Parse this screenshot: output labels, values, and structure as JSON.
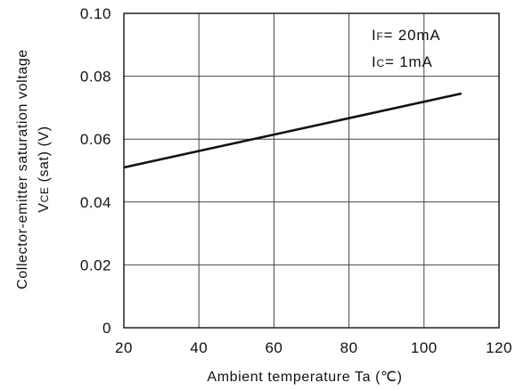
{
  "chart_data": {
    "type": "line",
    "xlabel": "Ambient temperature Ta (℃)",
    "ylabel_line1": "Collector-emitter saturation voltage",
    "ylabel_line2": {
      "prefix": "V",
      "subscript": "CE",
      "suffix": " (sat) (V)"
    },
    "xlim": [
      20,
      120
    ],
    "ylim": [
      0,
      0.1
    ],
    "x_ticks": [
      "20",
      "40",
      "60",
      "80",
      "100",
      "120"
    ],
    "y_ticks": [
      "0",
      "0.02",
      "0.04",
      "0.06",
      "0.08",
      "0.10"
    ],
    "grid": true,
    "annotations": [
      {
        "main": "I",
        "subscript": "F",
        "rest": "= 20mA"
      },
      {
        "main": "I",
        "subscript": "C",
        "rest": "= 1mA"
      }
    ],
    "series": [
      {
        "x": [
          20,
          110
        ],
        "values": [
          0.051,
          0.0745
        ],
        "color": "#111111"
      }
    ]
  }
}
